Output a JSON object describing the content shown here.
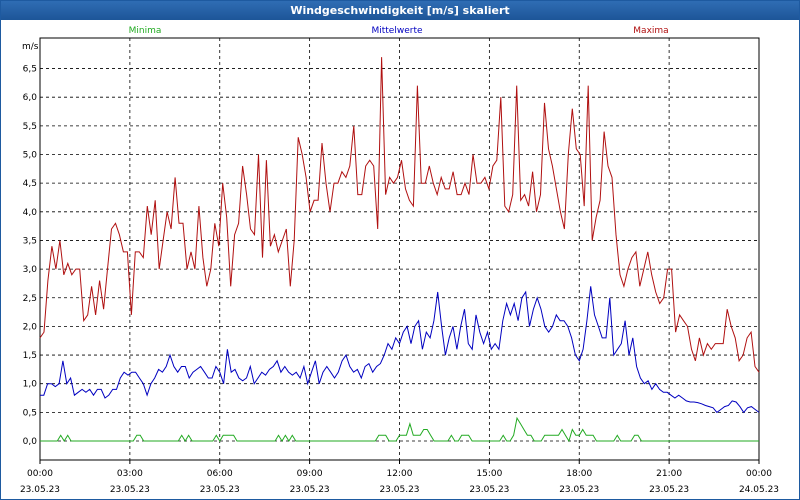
{
  "chart_data": {
    "type": "line",
    "title": "Windgeschwindigkeit [m/s] skaliert",
    "ylabel": "m/s",
    "ylim": [
      -0.3,
      7.0
    ],
    "y_ticks": [
      "0,0",
      "0,5",
      "1,0",
      "1,5",
      "2,0",
      "2,5",
      "3,0",
      "3,5",
      "4,0",
      "4,5",
      "5,0",
      "5,5",
      "6,0",
      "6,5"
    ],
    "y_tick_values": [
      0,
      0.5,
      1.0,
      1.5,
      2.0,
      2.5,
      3.0,
      3.5,
      4.0,
      4.5,
      5.0,
      5.5,
      6.0,
      6.5
    ],
    "x_ticks": [
      {
        "time": "00:00",
        "date": "23.05.23"
      },
      {
        "time": "03:00",
        "date": "23.05.23"
      },
      {
        "time": "06:00",
        "date": "23.05.23"
      },
      {
        "time": "09:00",
        "date": "23.05.23"
      },
      {
        "time": "12:00",
        "date": "23.05.23"
      },
      {
        "time": "15:00",
        "date": "23.05.23"
      },
      {
        "time": "18:00",
        "date": "23.05.23"
      },
      {
        "time": "21:00",
        "date": "23.05.23"
      },
      {
        "time": "00:00",
        "date": "24.05.23"
      }
    ],
    "x_range_hours": [
      0,
      24
    ],
    "grid": true,
    "legend_position": "top",
    "series": [
      {
        "name": "Minima",
        "color": "#22aa22",
        "values": [
          0,
          0,
          0,
          0,
          0,
          0,
          0.1,
          0,
          0.1,
          0,
          0,
          0,
          0,
          0,
          0,
          0,
          0,
          0,
          0,
          0,
          0,
          0,
          0,
          0,
          0,
          0,
          0,
          0,
          0.1,
          0.1,
          0,
          0,
          0,
          0,
          0,
          0,
          0,
          0,
          0,
          0,
          0,
          0.1,
          0,
          0.1,
          0,
          0,
          0,
          0,
          0,
          0,
          0,
          0.1,
          0,
          0.1,
          0.1,
          0.1,
          0.1,
          0,
          0,
          0,
          0,
          0,
          0,
          0,
          0,
          0,
          0,
          0,
          0,
          0.1,
          0,
          0.1,
          0,
          0.1,
          0,
          0,
          0,
          0,
          0,
          0,
          0,
          0,
          0,
          0,
          0,
          0,
          0,
          0,
          0,
          0,
          0,
          0,
          0,
          0,
          0,
          0,
          0,
          0,
          0.1,
          0.1,
          0.1,
          0,
          0,
          0,
          0.1,
          0.1,
          0.1,
          0.3,
          0.1,
          0.1,
          0.1,
          0.2,
          0.2,
          0.1,
          0,
          0,
          0,
          0,
          0,
          0.1,
          0,
          0,
          0.1,
          0.1,
          0.1,
          0,
          0,
          0,
          0,
          0,
          0,
          0,
          0,
          0,
          0.1,
          0,
          0,
          0.1,
          0.4,
          0.3,
          0.2,
          0.1,
          0.1,
          0,
          0,
          0,
          0.1,
          0.1,
          0.1,
          0.1,
          0.1,
          0.2,
          0.1,
          0,
          0.2,
          0.1,
          0.1,
          0.2,
          0.1,
          0.1,
          0.1,
          0,
          0,
          0,
          0,
          0,
          0,
          0.1,
          0,
          0,
          0,
          0,
          0.1,
          0.1,
          0,
          0,
          0,
          0,
          0,
          0,
          0,
          0,
          0,
          0,
          0,
          0,
          0,
          0,
          0,
          0,
          0,
          0,
          0,
          0,
          0,
          0,
          0,
          0,
          0,
          0,
          0,
          0,
          0,
          0,
          0,
          0,
          0,
          0,
          0
        ]
      },
      {
        "name": "Mittelwerte",
        "color": "#0000c0",
        "values": [
          0.8,
          0.8,
          1.0,
          1.0,
          0.95,
          1.0,
          1.4,
          1.0,
          1.1,
          0.8,
          0.85,
          0.9,
          0.85,
          0.9,
          0.8,
          0.9,
          0.9,
          0.75,
          0.8,
          0.9,
          0.9,
          1.1,
          1.2,
          1.15,
          1.2,
          1.2,
          1.1,
          1.0,
          0.8,
          1.0,
          1.1,
          1.25,
          1.2,
          1.3,
          1.5,
          1.3,
          1.2,
          1.3,
          1.3,
          1.1,
          1.2,
          1.25,
          1.3,
          1.2,
          1.1,
          1.1,
          1.3,
          1.2,
          1.0,
          1.6,
          1.2,
          1.25,
          1.1,
          1.05,
          1.1,
          1.3,
          1.0,
          1.1,
          1.2,
          1.15,
          1.25,
          1.3,
          1.4,
          1.2,
          1.3,
          1.2,
          1.15,
          1.2,
          1.1,
          1.3,
          1.0,
          1.2,
          1.4,
          1.0,
          1.2,
          1.3,
          1.2,
          1.1,
          1.2,
          1.4,
          1.5,
          1.3,
          1.2,
          1.25,
          1.1,
          1.3,
          1.35,
          1.2,
          1.3,
          1.35,
          1.5,
          1.7,
          1.6,
          1.8,
          1.7,
          1.9,
          2.0,
          1.7,
          2.0,
          2.1,
          1.6,
          1.9,
          1.8,
          2.1,
          2.6,
          2.0,
          1.5,
          1.8,
          2.0,
          1.6,
          2.0,
          2.3,
          1.7,
          1.6,
          2.2,
          1.9,
          1.7,
          1.9,
          1.6,
          1.7,
          1.6,
          2.1,
          2.4,
          2.2,
          2.4,
          2.1,
          2.5,
          2.6,
          2.0,
          2.3,
          2.5,
          2.3,
          2.0,
          1.9,
          2.0,
          2.2,
          2.1,
          2.1,
          2.0,
          1.8,
          1.5,
          1.4,
          1.6,
          2.1,
          2.7,
          2.2,
          2.0,
          1.8,
          1.8,
          2.5,
          1.5,
          1.6,
          1.7,
          2.1,
          1.5,
          1.8,
          1.3,
          1.1,
          1.0,
          1.05,
          0.9,
          1.0,
          0.9,
          0.85,
          0.85,
          0.8,
          0.75,
          0.8,
          0.75,
          0.7,
          0.68,
          0.68,
          0.67,
          0.65,
          0.62,
          0.6,
          0.58,
          0.5,
          0.55,
          0.6,
          0.62,
          0.7,
          0.68,
          0.6,
          0.5,
          0.58,
          0.6,
          0.55,
          0.5
        ]
      },
      {
        "name": "Maxima",
        "color": "#b01010",
        "values": [
          1.8,
          1.9,
          2.8,
          3.4,
          3.0,
          3.5,
          2.9,
          3.1,
          2.9,
          3.0,
          3.0,
          2.1,
          2.2,
          2.7,
          2.2,
          2.8,
          2.3,
          3.0,
          3.7,
          3.8,
          3.6,
          3.3,
          3.3,
          2.2,
          3.3,
          3.3,
          3.2,
          4.1,
          3.6,
          4.2,
          3.0,
          3.5,
          4.0,
          3.7,
          4.6,
          3.8,
          3.8,
          3.0,
          3.3,
          3.0,
          4.1,
          3.2,
          2.7,
          3.0,
          3.8,
          3.4,
          4.5,
          3.9,
          2.7,
          3.6,
          3.8,
          4.8,
          4.3,
          3.7,
          3.6,
          5.0,
          3.2,
          4.9,
          3.4,
          3.6,
          3.3,
          3.5,
          3.7,
          2.7,
          3.5,
          5.3,
          5.0,
          4.6,
          4.0,
          4.2,
          4.2,
          5.2,
          4.5,
          4.0,
          4.5,
          4.5,
          4.7,
          4.6,
          4.8,
          5.5,
          4.3,
          4.3,
          4.8,
          4.9,
          4.8,
          3.7,
          6.7,
          4.3,
          4.6,
          4.5,
          4.6,
          4.9,
          4.4,
          4.2,
          4.1,
          6.2,
          4.5,
          4.5,
          4.8,
          4.5,
          4.3,
          4.6,
          4.4,
          4.4,
          4.7,
          4.3,
          4.3,
          4.5,
          4.3,
          5.0,
          4.5,
          4.5,
          4.6,
          4.4,
          4.8,
          4.9,
          6.0,
          4.1,
          4.0,
          4.3,
          6.2,
          4.2,
          4.3,
          4.1,
          4.7,
          4.0,
          4.3,
          5.9,
          5.1,
          4.8,
          4.4,
          4.0,
          3.7,
          5.0,
          5.8,
          5.1,
          5.0,
          4.1,
          6.2,
          3.5,
          3.9,
          4.2,
          5.4,
          4.8,
          4.6,
          3.6,
          2.9,
          2.7,
          3.0,
          3.2,
          3.3,
          2.7,
          3.0,
          3.3,
          2.9,
          2.6,
          2.4,
          2.5,
          3.0,
          3.0,
          1.9,
          2.2,
          2.1,
          2.0,
          1.6,
          1.4,
          1.8,
          1.5,
          1.7,
          1.6,
          1.7,
          1.7,
          1.7,
          2.3,
          2.0,
          1.8,
          1.4,
          1.5,
          1.8,
          1.9,
          1.3,
          1.2
        ]
      }
    ]
  }
}
